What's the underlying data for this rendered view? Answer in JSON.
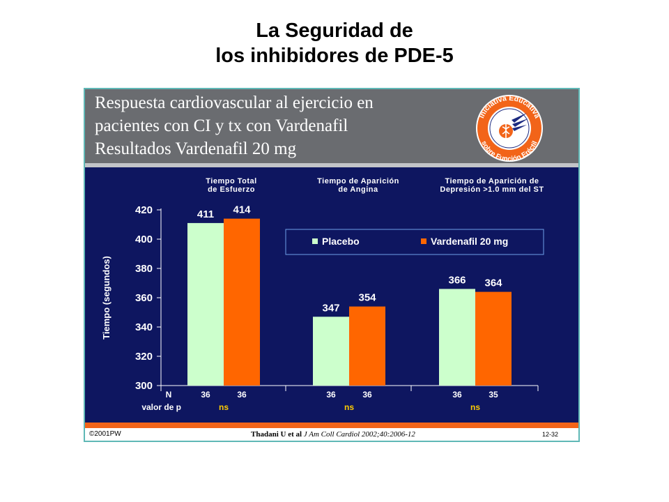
{
  "page": {
    "title_line1": "La Seguridad de",
    "title_line2": "los inhibidores de PDE-5"
  },
  "slide": {
    "header_lines": [
      "Respuesta cardiovascular al ejercicio en",
      "pacientes con CI y tx con Vardenafil",
      "Resultados Vardenafil 20 mg"
    ],
    "logo_text_top": "Iniciativa Educativa",
    "logo_text_bottom": "sobre Función Eréctil",
    "footer": {
      "copyright": "©2001PW",
      "citation_authors": "Thadani U et al",
      "citation_journal": "J Am Coll Cardiol 2002;40:2006-12",
      "slide_number": "12-32"
    },
    "colors": {
      "background": "#0e1660",
      "header": "#6a6c70",
      "placebo": "#ccffcc",
      "vardenafil": "#ff6600",
      "ns_label": "#ffcc00"
    }
  },
  "chart_data": {
    "type": "bar",
    "ylabel": "Tiempo (segundos)",
    "ylim": [
      300,
      420
    ],
    "yticks": [
      300,
      320,
      340,
      360,
      380,
      400,
      420
    ],
    "grid": false,
    "legend_position": "top-right",
    "groups": [
      {
        "title_lines": [
          "Tiempo Total",
          "de Esfuerzo"
        ],
        "values": [
          411,
          414
        ],
        "n": [
          "36",
          "36"
        ],
        "p": "ns"
      },
      {
        "title_lines": [
          "Tiempo de Aparición",
          "de Angina"
        ],
        "values": [
          347,
          354
        ],
        "n": [
          "36",
          "36"
        ],
        "p": "ns"
      },
      {
        "title_lines": [
          "Tiempo de Aparición de",
          "Depresión >1.0 mm del ST"
        ],
        "values": [
          366,
          364
        ],
        "n": [
          "36",
          "35"
        ],
        "p": "ns"
      }
    ],
    "series": [
      {
        "name": "Placebo",
        "color": "#ccffcc"
      },
      {
        "name": "Vardenafil 20 mg",
        "color": "#ff6600"
      }
    ],
    "row_labels": {
      "n": "N",
      "p": "valor de p"
    }
  }
}
